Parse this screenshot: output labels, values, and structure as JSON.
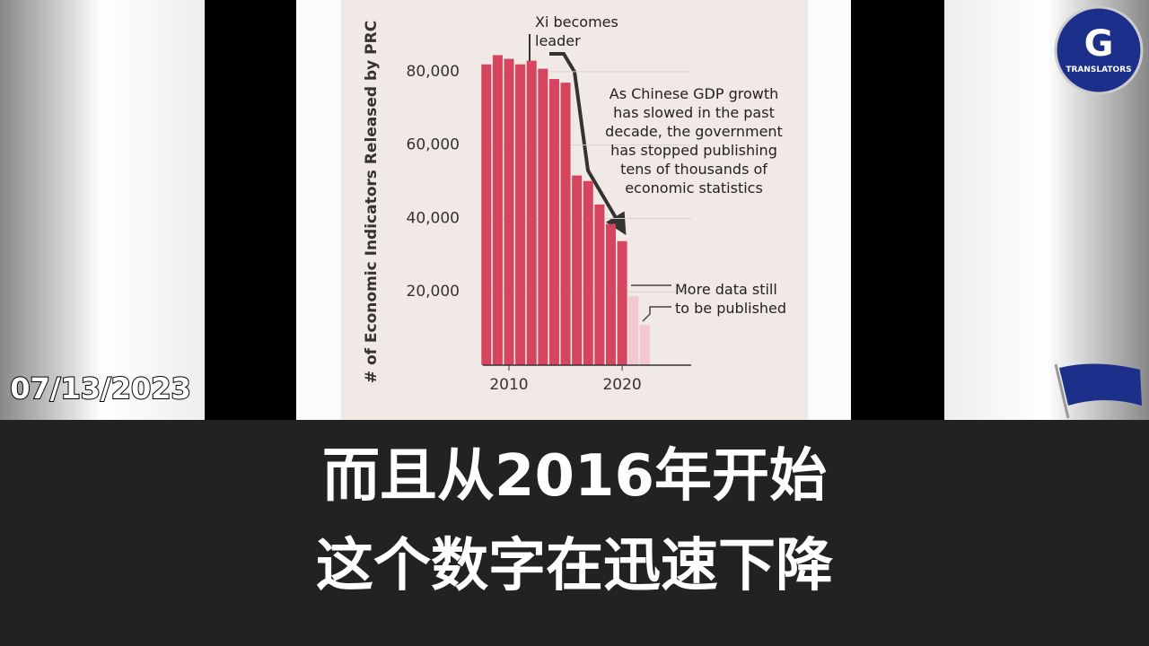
{
  "chart_data": {
    "type": "bar",
    "ylabel": "# of Economic Indicators Released by PRC",
    "x": [
      2008,
      2009,
      2010,
      2011,
      2012,
      2013,
      2014,
      2015,
      2016,
      2017,
      2018,
      2019,
      2020,
      2021,
      2022
    ],
    "values": [
      82000,
      84500,
      83500,
      82000,
      83000,
      80800,
      78000,
      77000,
      51700,
      50200,
      43800,
      38500,
      33800,
      18800,
      11000
    ],
    "bar_colors": [
      "#d5455f",
      "#d5455f",
      "#d5455f",
      "#d5455f",
      "#d5455f",
      "#d5455f",
      "#d5455f",
      "#d5455f",
      "#d5455f",
      "#d5455f",
      "#d5455f",
      "#d5455f",
      "#d5455f",
      "#f3c9cf",
      "#f3c9cf"
    ],
    "xlim": [
      2007.7,
      2026.1
    ],
    "xticks": [
      2010,
      2020
    ],
    "ylim": [
      0,
      90000
    ],
    "yticks": [
      {
        "value": 20000,
        "label": "20,000"
      },
      {
        "value": 40000,
        "label": "40,000"
      },
      {
        "value": 60000,
        "label": "60,000"
      },
      {
        "value": 80000,
        "label": "80,000"
      }
    ],
    "grid": true,
    "annotations": [
      {
        "lines": [
          "Xi becomes",
          "leader"
        ]
      },
      {
        "lines": [
          "As Chinese GDP growth",
          "has slowed in the past",
          "decade, the government",
          "has stopped publishing",
          "tens of thousands of",
          "economic statistics"
        ]
      },
      {
        "lines": [
          "More data still",
          "to be published"
        ]
      }
    ]
  },
  "date": "07/13/2023",
  "subtitle": [
    "而且从2016年开始",
    "这个数字在迅速下降"
  ],
  "logo": {
    "letter": "G",
    "text": "TRANSLATORS"
  }
}
